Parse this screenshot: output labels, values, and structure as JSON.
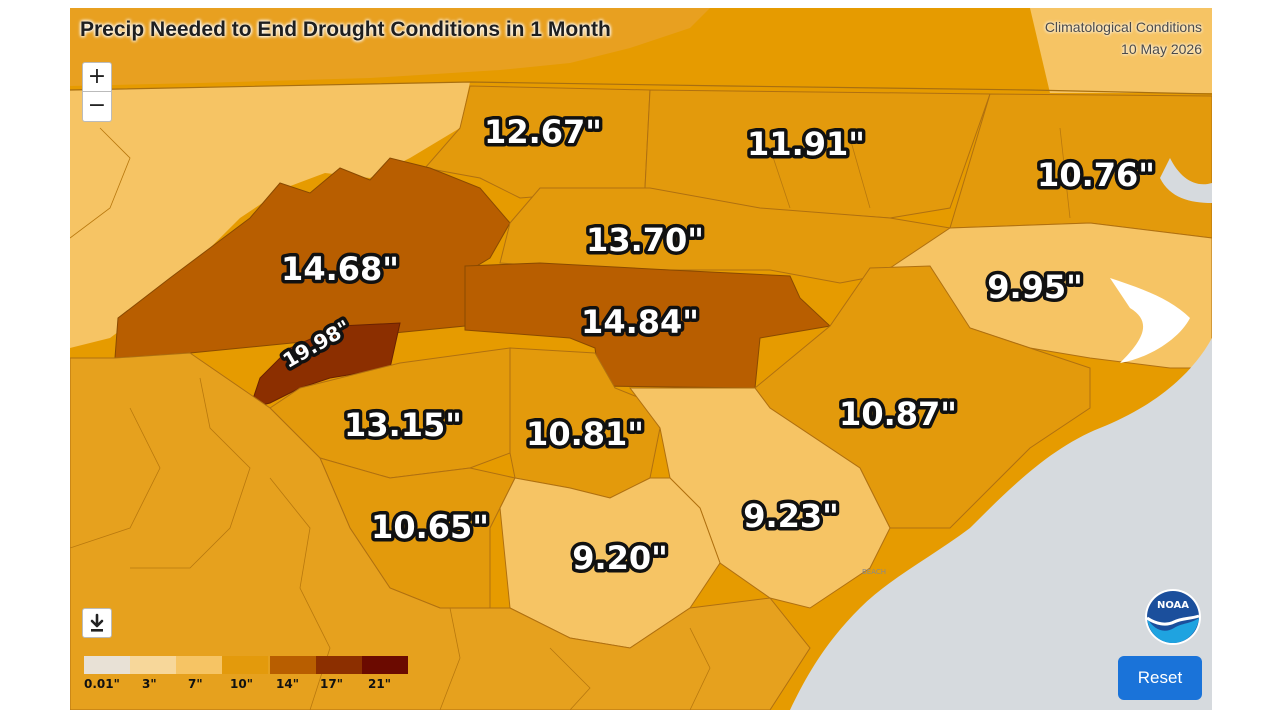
{
  "map": {
    "title": "Precip Needed to End Drought Conditions in 1 Month",
    "layer_name": "Climatological Conditions",
    "date": "10 May 2026",
    "reset_label": "Reset",
    "zoom_in_label": "+",
    "zoom_out_label": "−",
    "download_icon": "download-icon",
    "logo_text": "NOAA",
    "place_label": "BEACH",
    "colors": {
      "land_base": "#e69b00",
      "water": "#d6dade",
      "reset_button": "#1a73d9"
    },
    "regions": [
      {
        "value": "12.67\"",
        "color": "#e39a0c"
      },
      {
        "value": "11.91\"",
        "color": "#e39a0c"
      },
      {
        "value": "10.76\"",
        "color": "#e39a0c"
      },
      {
        "value": "13.70\"",
        "color": "#e39a0c"
      },
      {
        "value": "14.68\"",
        "color": "#b85e00"
      },
      {
        "value": "9.95\"",
        "color": "#f6c464"
      },
      {
        "value": "14.84\"",
        "color": "#b85e00"
      },
      {
        "value": "19.98\"",
        "color": "#8c2f00"
      },
      {
        "value": "13.15\"",
        "color": "#e39a0c"
      },
      {
        "value": "10.81\"",
        "color": "#e39a0c"
      },
      {
        "value": "10.87\"",
        "color": "#e39a0c"
      },
      {
        "value": "9.23\"",
        "color": "#f6c464"
      },
      {
        "value": "10.65\"",
        "color": "#e39a0c"
      },
      {
        "value": "9.20\"",
        "color": "#f6c464"
      }
    ]
  },
  "legend": {
    "bins": [
      {
        "color": "#e8e1d6"
      },
      {
        "color": "#f7d79a"
      },
      {
        "color": "#f6c464"
      },
      {
        "color": "#e39a0c"
      },
      {
        "color": "#b85e00"
      },
      {
        "color": "#8c2f00"
      },
      {
        "color": "#6b0a00"
      }
    ],
    "ticks": [
      "0.01\"",
      "3\"",
      "7\"",
      "10\"",
      "14\"",
      "17\"",
      "21\""
    ]
  }
}
